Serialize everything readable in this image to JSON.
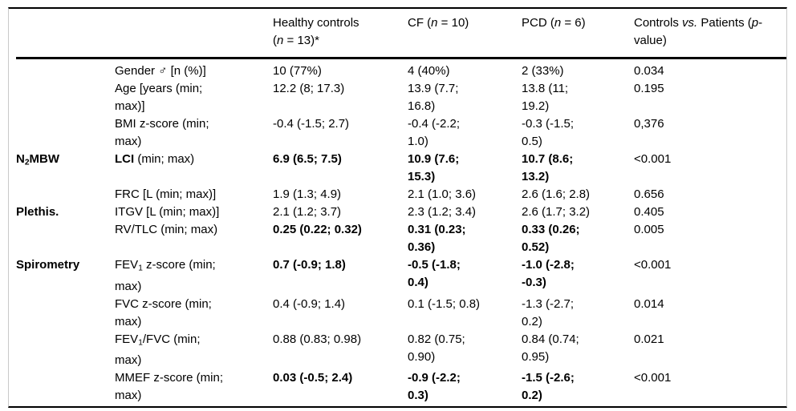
{
  "colors": {
    "text": "#000000",
    "rules": "#000000",
    "frame_border": "#c9c9c9",
    "background": "#ffffff"
  },
  "table": {
    "header": [
      {
        "id": "group",
        "segs": ""
      },
      {
        "id": "parameter",
        "segs": ""
      },
      {
        "id": "healthy",
        "segs": [
          {
            "t": "Healthy controls\n("
          },
          {
            "t": "n",
            "i": true
          },
          {
            "t": " = 13)*"
          }
        ]
      },
      {
        "id": "cf",
        "segs": [
          {
            "t": "CF ("
          },
          {
            "t": "n",
            "i": true
          },
          {
            "t": " = 10)"
          }
        ]
      },
      {
        "id": "pcd",
        "segs": [
          {
            "t": "PCD ("
          },
          {
            "t": "n",
            "i": true
          },
          {
            "t": " = 6)"
          }
        ]
      },
      {
        "id": "pvalue",
        "segs": [
          {
            "t": "Controls "
          },
          {
            "t": "vs.",
            "i": true
          },
          {
            "t": " Patients ("
          },
          {
            "t": "p",
            "i": true
          },
          {
            "t": "-\nvalue)"
          }
        ]
      }
    ],
    "rows": [
      {
        "group": "",
        "param": "Gender ♂ [n (%)]",
        "healthy": "10 (77%)",
        "cf": "4 (40%)",
        "pcd": "2 (33%)",
        "p": "0.034"
      },
      {
        "group": "",
        "param": "Age [years (min;\nmax)]",
        "healthy": "12.2 (8; 17.3)",
        "cf": "13.9 (7.7;\n16.8)",
        "pcd": "13.8 (11;\n19.2)",
        "p": "0.195"
      },
      {
        "group": "",
        "param": "BMI z-score (min;\nmax)",
        "healthy": "-0.4 (-1.5; 2.7)",
        "cf": "-0.4 (-2.2;\n1.0)",
        "pcd": "-0.3 (-1.5;\n0.5)",
        "p": "0,376"
      },
      {
        "group": [
          {
            "t": "N",
            "b": true
          },
          {
            "t": "2",
            "b": true,
            "s": true
          },
          {
            "t": "MBW",
            "b": true
          }
        ],
        "param": [
          {
            "t": "LCI",
            "b": true
          },
          {
            "t": " (min; max)"
          }
        ],
        "healthy": [
          {
            "t": "6.9 (6.5; 7.5)",
            "b": true
          }
        ],
        "cf": [
          {
            "t": "10.9 (7.6;\n15.3)",
            "b": true
          }
        ],
        "pcd": [
          {
            "t": "10.7 (8.6;\n13.2)",
            "b": true
          }
        ],
        "p": "<0.001"
      },
      {
        "group": "",
        "param": "FRC [L (min; max)]",
        "healthy": "1.9 (1.3; 4.9)",
        "cf": "2.1 (1.0; 3.6)",
        "pcd": "2.6 (1.6; 2.8)",
        "p": "0.656"
      },
      {
        "group": [
          {
            "t": "Plethis.",
            "b": true
          }
        ],
        "param": "ITGV [L (min; max)]",
        "healthy": "2.1 (1.2; 3.7)",
        "cf": "2.3 (1.2; 3.4)",
        "pcd": "2.6 (1.7; 3.2)",
        "p": "0.405"
      },
      {
        "group": "",
        "param": "RV/TLC (min; max)",
        "healthy": [
          {
            "t": "0.25 (0.22; 0.32)",
            "b": true
          }
        ],
        "cf": [
          {
            "t": "0.31 (0.23;\n0.36)",
            "b": true
          }
        ],
        "pcd": [
          {
            "t": "0.33 (0.26;\n0.52)",
            "b": true
          }
        ],
        "p": "0.005"
      },
      {
        "group": [
          {
            "t": "Spirometry",
            "b": true
          }
        ],
        "param": [
          {
            "t": "FEV"
          },
          {
            "t": "1",
            "s": true
          },
          {
            "t": " z-score (min;\nmax)"
          }
        ],
        "healthy": [
          {
            "t": "0.7 (-0.9; 1.8)",
            "b": true
          }
        ],
        "cf": [
          {
            "t": "-0.5 (-1.8;\n0.4)",
            "b": true
          }
        ],
        "pcd": [
          {
            "t": "-1.0 (-2.8;\n-0.3)",
            "b": true
          }
        ],
        "p": "<0.001"
      },
      {
        "group": "",
        "param": "FVC z-score (min;\nmax)",
        "healthy": "0.4 (-0.9; 1.4)",
        "cf": "0.1 (-1.5; 0.8)",
        "pcd": "-1.3 (-2.7;\n0.2)",
        "p": "0.014"
      },
      {
        "group": "",
        "param": [
          {
            "t": "FEV"
          },
          {
            "t": "1",
            "s": true
          },
          {
            "t": "/FVC (min;\nmax)"
          }
        ],
        "healthy": "0.88 (0.83; 0.98)",
        "cf": "0.82 (0.75;\n0.90)",
        "pcd": "0.84 (0.74;\n0.95)",
        "p": "0.021"
      },
      {
        "group": "",
        "param": "MMEF z-score (min;\nmax)",
        "healthy": [
          {
            "t": "0.03 (-0.5; 2.4)",
            "b": true
          }
        ],
        "cf": [
          {
            "t": "-0.9 (-2.2;\n0.3)",
            "b": true
          }
        ],
        "pcd": [
          {
            "t": "-1.5 (-2.6;\n0.2)",
            "b": true
          }
        ],
        "p": "<0.001"
      }
    ]
  }
}
